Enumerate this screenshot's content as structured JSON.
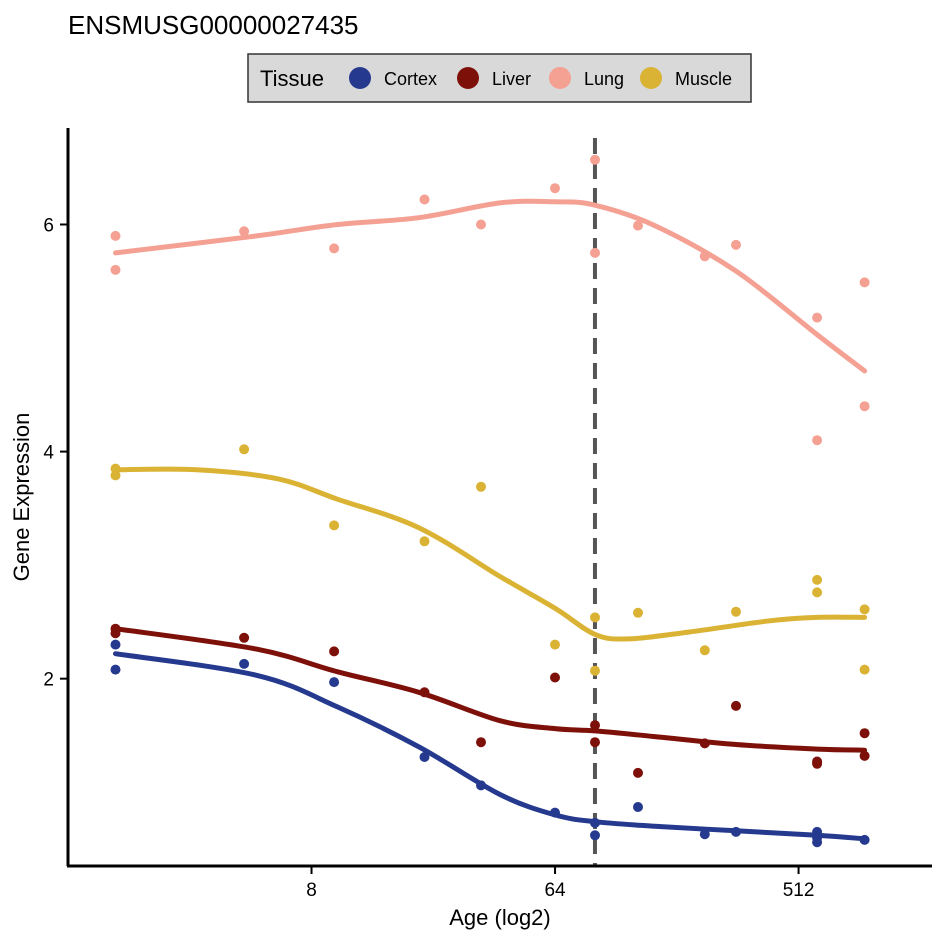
{
  "chart_data": {
    "type": "scatter",
    "title": "ENSMUSG00000027435",
    "xlabel": "Age (log2)",
    "ylabel": "Gene Expression",
    "x_scale": "log2",
    "xlim": [
      1,
      1600
    ],
    "ylim": [
      0.35,
      6.85
    ],
    "x_ticks": [
      {
        "value": 8,
        "label": "8"
      },
      {
        "value": 64,
        "label": "64"
      },
      {
        "value": 512,
        "label": "512"
      }
    ],
    "y_ticks": [
      {
        "value": 2,
        "label": "2"
      },
      {
        "value": 4,
        "label": "4"
      },
      {
        "value": 6,
        "label": "6"
      }
    ],
    "vline": {
      "x": 90,
      "style": "dashed",
      "color": "#555555"
    },
    "legend": {
      "title": "Tissue",
      "position": "top"
    },
    "grid": false,
    "series": [
      {
        "name": "Cortex",
        "color": "#253a8e",
        "points": [
          [
            1.5,
            2.3
          ],
          [
            1.5,
            2.08
          ],
          [
            4.5,
            2.13
          ],
          [
            9.7,
            1.97
          ],
          [
            21,
            1.31
          ],
          [
            34,
            1.06
          ],
          [
            64,
            0.82
          ],
          [
            90,
            0.73
          ],
          [
            90,
            0.62
          ],
          [
            130,
            0.87
          ],
          [
            230,
            0.63
          ],
          [
            300,
            0.65
          ],
          [
            600,
            0.65
          ],
          [
            600,
            0.6
          ],
          [
            600,
            0.56
          ],
          [
            900,
            0.58
          ]
        ],
        "trend": [
          [
            1.5,
            2.22
          ],
          [
            5,
            2.03
          ],
          [
            10,
            1.75
          ],
          [
            20,
            1.4
          ],
          [
            40,
            0.98
          ],
          [
            64,
            0.8
          ],
          [
            90,
            0.74
          ],
          [
            150,
            0.7
          ],
          [
            300,
            0.66
          ],
          [
            600,
            0.62
          ],
          [
            900,
            0.59
          ]
        ]
      },
      {
        "name": "Liver",
        "color": "#7d1109",
        "points": [
          [
            1.5,
            2.44
          ],
          [
            1.5,
            2.4
          ],
          [
            4.5,
            2.36
          ],
          [
            9.7,
            2.24
          ],
          [
            21,
            1.88
          ],
          [
            34,
            1.44
          ],
          [
            64,
            2.01
          ],
          [
            90,
            1.59
          ],
          [
            90,
            1.44
          ],
          [
            130,
            1.17
          ],
          [
            230,
            1.43
          ],
          [
            300,
            1.76
          ],
          [
            600,
            1.27
          ],
          [
            600,
            1.25
          ],
          [
            900,
            1.52
          ],
          [
            900,
            1.32
          ]
        ],
        "trend": [
          [
            1.5,
            2.44
          ],
          [
            5,
            2.26
          ],
          [
            10,
            2.06
          ],
          [
            20,
            1.88
          ],
          [
            40,
            1.63
          ],
          [
            64,
            1.56
          ],
          [
            90,
            1.54
          ],
          [
            150,
            1.49
          ],
          [
            300,
            1.42
          ],
          [
            600,
            1.38
          ],
          [
            900,
            1.37
          ]
        ]
      },
      {
        "name": "Lung",
        "color": "#f4a194",
        "points": [
          [
            1.5,
            5.9
          ],
          [
            1.5,
            5.6
          ],
          [
            4.5,
            5.94
          ],
          [
            9.7,
            5.79
          ],
          [
            21,
            6.22
          ],
          [
            34,
            6.0
          ],
          [
            64,
            6.32
          ],
          [
            90,
            6.57
          ],
          [
            90,
            5.75
          ],
          [
            130,
            5.99
          ],
          [
            230,
            5.72
          ],
          [
            300,
            5.82
          ],
          [
            600,
            5.18
          ],
          [
            600,
            4.1
          ],
          [
            900,
            5.49
          ],
          [
            900,
            4.4
          ]
        ],
        "trend": [
          [
            1.5,
            5.75
          ],
          [
            5,
            5.9
          ],
          [
            10,
            6.0
          ],
          [
            20,
            6.06
          ],
          [
            40,
            6.19
          ],
          [
            64,
            6.2
          ],
          [
            90,
            6.17
          ],
          [
            150,
            5.99
          ],
          [
            300,
            5.59
          ],
          [
            600,
            5.03
          ],
          [
            900,
            4.71
          ]
        ]
      },
      {
        "name": "Muscle",
        "color": "#dbb334",
        "points": [
          [
            1.5,
            3.85
          ],
          [
            1.5,
            3.79
          ],
          [
            4.5,
            4.02
          ],
          [
            9.7,
            3.35
          ],
          [
            21,
            3.21
          ],
          [
            34,
            3.69
          ],
          [
            64,
            2.3
          ],
          [
            90,
            2.54
          ],
          [
            90,
            2.07
          ],
          [
            130,
            2.58
          ],
          [
            230,
            2.25
          ],
          [
            300,
            2.59
          ],
          [
            600,
            2.87
          ],
          [
            600,
            2.76
          ],
          [
            900,
            2.61
          ],
          [
            900,
            2.08
          ]
        ],
        "trend": [
          [
            1.5,
            3.84
          ],
          [
            3,
            3.84
          ],
          [
            6,
            3.76
          ],
          [
            10,
            3.58
          ],
          [
            20,
            3.33
          ],
          [
            40,
            2.9
          ],
          [
            64,
            2.62
          ],
          [
            90,
            2.39
          ],
          [
            120,
            2.35
          ],
          [
            200,
            2.41
          ],
          [
            400,
            2.51
          ],
          [
            600,
            2.54
          ],
          [
            900,
            2.54
          ]
        ]
      }
    ]
  }
}
